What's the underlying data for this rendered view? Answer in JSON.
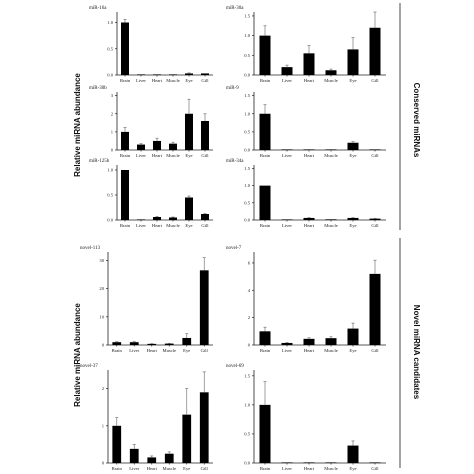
{
  "groups": [
    {
      "ylabel": "Relative miRNA abundance",
      "side_label": "Conserved miRNAs"
    },
    {
      "ylabel": "Relative miRNA abundance",
      "side_label": "Novel miRNA candidates"
    }
  ],
  "chart_data": [
    {
      "type": "bar",
      "title": "miR-16a",
      "categories": [
        "Brain",
        "Liver",
        "Heart",
        "Muscle",
        "Eye",
        "Gill"
      ],
      "values": [
        1.0,
        0.01,
        0.01,
        0.01,
        0.03,
        0.03
      ],
      "errors": [
        0.06,
        0.0,
        0.0,
        0.0,
        0.01,
        0.0
      ],
      "ylim": [
        0,
        1.2
      ],
      "yticks": [
        "0.0",
        "0.5",
        "1.0"
      ],
      "ytick_values": [
        0,
        0.5,
        1.0
      ]
    },
    {
      "type": "bar",
      "title": "miR-30a",
      "categories": [
        "Brain",
        "Liver",
        "Heart",
        "Muscle",
        "Eye",
        "Gill"
      ],
      "values": [
        1.0,
        0.2,
        0.55,
        0.12,
        0.65,
        1.2
      ],
      "errors": [
        0.25,
        0.05,
        0.2,
        0.03,
        0.3,
        0.4
      ],
      "ylim": [
        0,
        1.6
      ],
      "yticks": [
        "0.0",
        "0.5",
        "1.0",
        "1.5"
      ],
      "ytick_values": [
        0,
        0.5,
        1.0,
        1.5
      ]
    },
    {
      "type": "bar",
      "title": "miR-30b",
      "categories": [
        "Brain",
        "Liver",
        "Heart",
        "Muscle",
        "Eye",
        "Gill"
      ],
      "values": [
        1.0,
        0.3,
        0.5,
        0.35,
        2.0,
        1.6
      ],
      "errors": [
        0.25,
        0.05,
        0.15,
        0.08,
        0.8,
        0.4
      ],
      "ylim": [
        0,
        3.2
      ],
      "yticks": [
        "0",
        "1",
        "2",
        "3"
      ],
      "ytick_values": [
        0,
        1,
        2,
        3
      ]
    },
    {
      "type": "bar",
      "title": "miR-9",
      "categories": [
        "Brain",
        "Liver",
        "Heart",
        "Muscle",
        "Eye",
        "Gill"
      ],
      "values": [
        1.0,
        0.0,
        0.0,
        0.0,
        0.2,
        0.01
      ],
      "errors": [
        0.25,
        0.0,
        0.0,
        0.0,
        0.03,
        0.0
      ],
      "ylim": [
        0,
        1.6
      ],
      "yticks": [
        "0.0",
        "0.5",
        "1.0",
        "1.5"
      ],
      "ytick_values": [
        0,
        0.5,
        1.0,
        1.5
      ]
    },
    {
      "type": "bar",
      "title": "miR-125b",
      "categories": [
        "Brain",
        "Liver",
        "Heart",
        "Muscle",
        "Eye",
        "Gill"
      ],
      "values": [
        1.0,
        0.01,
        0.06,
        0.05,
        0.45,
        0.12
      ],
      "errors": [
        0.0,
        0.0,
        0.01,
        0.01,
        0.03,
        0.01
      ],
      "ylim": [
        0,
        1.1
      ],
      "yticks": [
        "0.0",
        "0.5",
        "1.0"
      ],
      "ytick_values": [
        0,
        0.5,
        1.0
      ]
    },
    {
      "type": "bar",
      "title": "miR-34a",
      "categories": [
        "Brain",
        "Liver",
        "Heart",
        "Muscle",
        "Eye",
        "Gill"
      ],
      "values": [
        1.0,
        0.01,
        0.06,
        0.02,
        0.06,
        0.04
      ],
      "errors": [
        0.0,
        0.0,
        0.01,
        0.0,
        0.01,
        0.01
      ],
      "ylim": [
        0,
        1.6
      ],
      "yticks": [
        "0.0",
        "0.5",
        "1.0",
        "1.5"
      ],
      "ytick_values": [
        0,
        0.5,
        1.0,
        1.5
      ]
    },
    {
      "type": "bar",
      "title": "novel-113",
      "categories": [
        "Brain",
        "Liver",
        "Heart",
        "Muscle",
        "Eye",
        "Gill"
      ],
      "values": [
        1.0,
        1.0,
        0.4,
        0.5,
        2.5,
        26.5
      ],
      "errors": [
        0.2,
        0.2,
        0.1,
        0.1,
        1.5,
        4.5
      ],
      "ylim": [
        0,
        33
      ],
      "yticks": [
        "0",
        "10",
        "20",
        "30"
      ],
      "ytick_values": [
        0,
        10,
        20,
        30
      ]
    },
    {
      "type": "bar",
      "title": "novel-7",
      "categories": [
        "Brain",
        "Liver",
        "Heart",
        "Muscle",
        "Eye",
        "Gill"
      ],
      "values": [
        1.0,
        0.15,
        0.45,
        0.5,
        1.2,
        5.2
      ],
      "errors": [
        0.3,
        0.03,
        0.08,
        0.1,
        0.4,
        1.0
      ],
      "ylim": [
        0,
        6.8
      ],
      "yticks": [
        "0",
        "2",
        "4",
        "6"
      ],
      "ytick_values": [
        0,
        2,
        4,
        6
      ]
    },
    {
      "type": "bar",
      "title": "novel-37",
      "categories": [
        "Brain",
        "Liver",
        "Heart",
        "Muscle",
        "Eye",
        "Gill"
      ],
      "values": [
        1.0,
        0.38,
        0.15,
        0.25,
        1.3,
        1.9
      ],
      "errors": [
        0.22,
        0.12,
        0.04,
        0.05,
        0.7,
        0.55
      ],
      "ylim": [
        0,
        2.5
      ],
      "yticks": [
        "0",
        "1",
        "2"
      ],
      "ytick_values": [
        0,
        1,
        2
      ]
    },
    {
      "type": "bar",
      "title": "novel-69",
      "categories": [
        "Brain",
        "Liver",
        "Heart",
        "Muscle",
        "Eye",
        "Gill"
      ],
      "values": [
        1.0,
        0.0,
        0.0,
        0.0,
        0.3,
        0.01
      ],
      "errors": [
        0.4,
        0.0,
        0.0,
        0.0,
        0.08,
        0.0
      ],
      "ylim": [
        0,
        1.6
      ],
      "yticks": [
        "0.0",
        "0.5",
        "1.0",
        "1.5"
      ],
      "ytick_values": [
        0,
        0.5,
        1.0,
        1.5
      ]
    }
  ]
}
